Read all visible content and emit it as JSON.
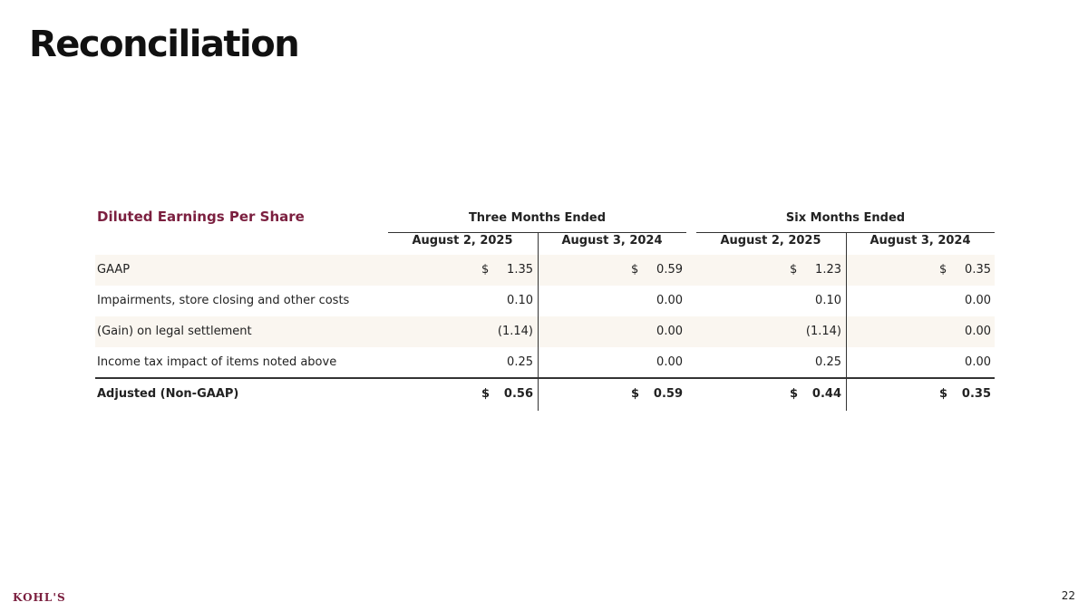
{
  "header": {
    "title": "Reconciliation"
  },
  "table": {
    "caption": "Diluted Earnings Per Share",
    "groups": [
      "Three Months Ended",
      "Six Months Ended"
    ],
    "columns": [
      "August 2, 2025",
      "August 3, 2024",
      "August 2, 2025",
      "August 3, 2024"
    ],
    "rows": [
      {
        "label": "GAAP",
        "cells": [
          {
            "currency": "$",
            "value": "1.35"
          },
          {
            "currency": "$",
            "value": "0.59"
          },
          {
            "currency": "$",
            "value": "1.23"
          },
          {
            "currency": "$",
            "value": "0.35"
          }
        ]
      },
      {
        "label": "Impairments, store closing and other costs",
        "cells": [
          {
            "value": "0.10"
          },
          {
            "value": "0.00"
          },
          {
            "value": "0.10"
          },
          {
            "value": "0.00"
          }
        ]
      },
      {
        "label": "(Gain) on legal settlement",
        "cells": [
          {
            "value": "(1.14)"
          },
          {
            "value": "0.00"
          },
          {
            "value": "(1.14)"
          },
          {
            "value": "0.00"
          }
        ]
      },
      {
        "label": "Income tax impact of items noted above",
        "cells": [
          {
            "value": "0.25"
          },
          {
            "value": "0.00"
          },
          {
            "value": "0.25"
          },
          {
            "value": "0.00"
          }
        ]
      },
      {
        "label": "Adjusted (Non-GAAP)",
        "cells": [
          {
            "currency": "$",
            "value": "0.56"
          },
          {
            "currency": "$",
            "value": "0.59"
          },
          {
            "currency": "$",
            "value": "0.44"
          },
          {
            "currency": "$",
            "value": "0.35"
          }
        ]
      }
    ]
  },
  "footer": {
    "logo": "KOHL'S",
    "page_number": "22"
  }
}
